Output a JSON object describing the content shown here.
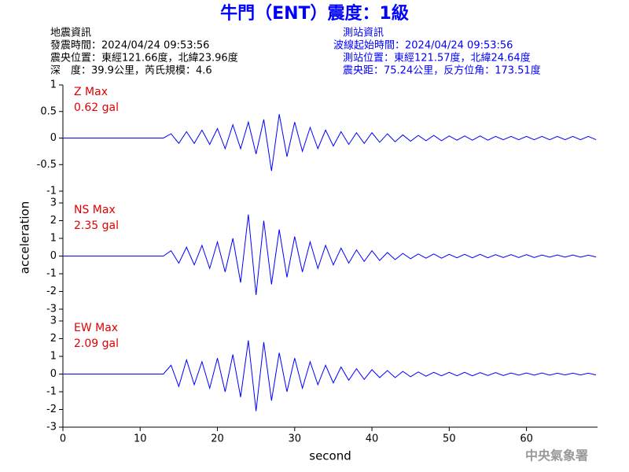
{
  "title": "牛門（ENT）震度：1級",
  "info_left": [
    "地震資訊",
    "發震時間：2024/04/24 09:53:56",
    "震央位置：東經121.66度，北緯23.96度",
    "深　度：39.9公里，芮氏規模：4.6"
  ],
  "info_right": [
    "測站資訊",
    "波線起始時間：2024/04/24 09:53:56",
    "測站位置：東經121.57度，北緯24.64度",
    "震央距：75.24公里，反方位角：173.51度"
  ],
  "ylabel": "acceleration",
  "watermark": "中央氣象署",
  "chart_data": [
    {
      "type": "line",
      "label": "Z Max",
      "max_label": "0.62 gal",
      "ylim": [
        -1,
        1
      ],
      "yticks": [
        -1,
        -0.5,
        0,
        0.5,
        1
      ],
      "xlim": [
        0,
        69.2
      ],
      "x": [
        0,
        13,
        14,
        15,
        16,
        17,
        18,
        19,
        20,
        21,
        22,
        23,
        24,
        25,
        26,
        27,
        28,
        29,
        30,
        31,
        32,
        33,
        34,
        35,
        36,
        37,
        38,
        39,
        40,
        41,
        42,
        43,
        44,
        45,
        46,
        47,
        48,
        49,
        50,
        51,
        52,
        53,
        54,
        55,
        56,
        57,
        58,
        59,
        60,
        61,
        62,
        63,
        64,
        65,
        66,
        67,
        68,
        69
      ],
      "series": [
        {
          "color": "#0000ff",
          "values": [
            0,
            0,
            0.08,
            -0.1,
            0.12,
            -0.1,
            0.15,
            -0.12,
            0.18,
            -0.2,
            0.25,
            -0.2,
            0.3,
            -0.3,
            0.35,
            -0.62,
            0.45,
            -0.35,
            0.3,
            -0.25,
            0.2,
            -0.2,
            0.15,
            -0.15,
            0.12,
            -0.12,
            0.1,
            -0.1,
            0.1,
            -0.08,
            0.08,
            -0.07,
            0.06,
            -0.06,
            0.05,
            -0.05,
            0.05,
            -0.05,
            0.04,
            -0.04,
            0.04,
            -0.04,
            0.04,
            -0.04,
            0.03,
            -0.03,
            0.03,
            -0.03,
            0.03,
            -0.03,
            0.03,
            -0.03,
            0.03,
            -0.03,
            0.03,
            -0.03,
            0.03,
            -0.03
          ]
        }
      ]
    },
    {
      "type": "line",
      "label": "NS Max",
      "max_label": "2.35 gal",
      "ylim": [
        -3,
        3
      ],
      "yticks": [
        -3,
        -2,
        -1,
        0,
        1,
        2,
        3
      ],
      "xlim": [
        0,
        69.2
      ],
      "x": [
        0,
        13,
        14,
        15,
        16,
        17,
        18,
        19,
        20,
        21,
        22,
        23,
        24,
        25,
        26,
        27,
        28,
        29,
        30,
        31,
        32,
        33,
        34,
        35,
        36,
        37,
        38,
        39,
        40,
        41,
        42,
        43,
        44,
        45,
        46,
        47,
        48,
        49,
        50,
        51,
        52,
        53,
        54,
        55,
        56,
        57,
        58,
        59,
        60,
        61,
        62,
        63,
        64,
        65,
        66,
        67,
        68,
        69
      ],
      "series": [
        {
          "color": "#0000ff",
          "values": [
            0,
            0,
            0.3,
            -0.4,
            0.5,
            -0.5,
            0.6,
            -0.7,
            0.8,
            -0.9,
            1.0,
            -1.5,
            2.35,
            -2.2,
            2.0,
            -1.6,
            1.5,
            -1.2,
            1.1,
            -0.9,
            0.8,
            -0.7,
            0.6,
            -0.5,
            0.45,
            -0.4,
            0.35,
            -0.3,
            0.3,
            -0.25,
            0.2,
            -0.2,
            0.15,
            -0.15,
            0.12,
            -0.12,
            0.12,
            -0.12,
            0.1,
            -0.1,
            0.1,
            -0.1,
            0.1,
            -0.1,
            0.08,
            -0.08,
            0.08,
            -0.08,
            0.08,
            -0.08,
            0.06,
            -0.06,
            0.06,
            -0.06,
            0.06,
            -0.06,
            0.05,
            -0.05
          ]
        }
      ]
    },
    {
      "type": "line",
      "label": "EW Max",
      "max_label": "2.09 gal",
      "ylim": [
        -3,
        3
      ],
      "yticks": [
        -3,
        -2,
        -1,
        0,
        1,
        2,
        3
      ],
      "xlim": [
        0,
        69.2
      ],
      "xticks": [
        0,
        10,
        20,
        30,
        40,
        50,
        60
      ],
      "xlabel": "second",
      "x": [
        0,
        13,
        14,
        15,
        16,
        17,
        18,
        19,
        20,
        21,
        22,
        23,
        24,
        25,
        26,
        27,
        28,
        29,
        30,
        31,
        32,
        33,
        34,
        35,
        36,
        37,
        38,
        39,
        40,
        41,
        42,
        43,
        44,
        45,
        46,
        47,
        48,
        49,
        50,
        51,
        52,
        53,
        54,
        55,
        56,
        57,
        58,
        59,
        60,
        61,
        62,
        63,
        64,
        65,
        66,
        67,
        68,
        69
      ],
      "series": [
        {
          "color": "#0000ff",
          "values": [
            0,
            0,
            0.5,
            -0.7,
            0.8,
            -0.6,
            0.7,
            -0.8,
            0.9,
            -1.0,
            1.1,
            -1.3,
            1.9,
            -2.09,
            1.8,
            -1.5,
            1.2,
            -1.0,
            0.9,
            -0.8,
            0.7,
            -0.6,
            0.5,
            -0.5,
            0.4,
            -0.35,
            0.3,
            -0.3,
            0.25,
            -0.2,
            0.2,
            -0.2,
            0.15,
            -0.15,
            0.12,
            -0.12,
            0.1,
            -0.1,
            0.1,
            -0.1,
            0.1,
            -0.1,
            0.08,
            -0.08,
            0.08,
            -0.08,
            0.06,
            -0.06,
            0.06,
            -0.06,
            0.06,
            -0.06,
            0.05,
            -0.05,
            0.05,
            -0.05,
            0.05,
            -0.05
          ]
        }
      ]
    }
  ]
}
